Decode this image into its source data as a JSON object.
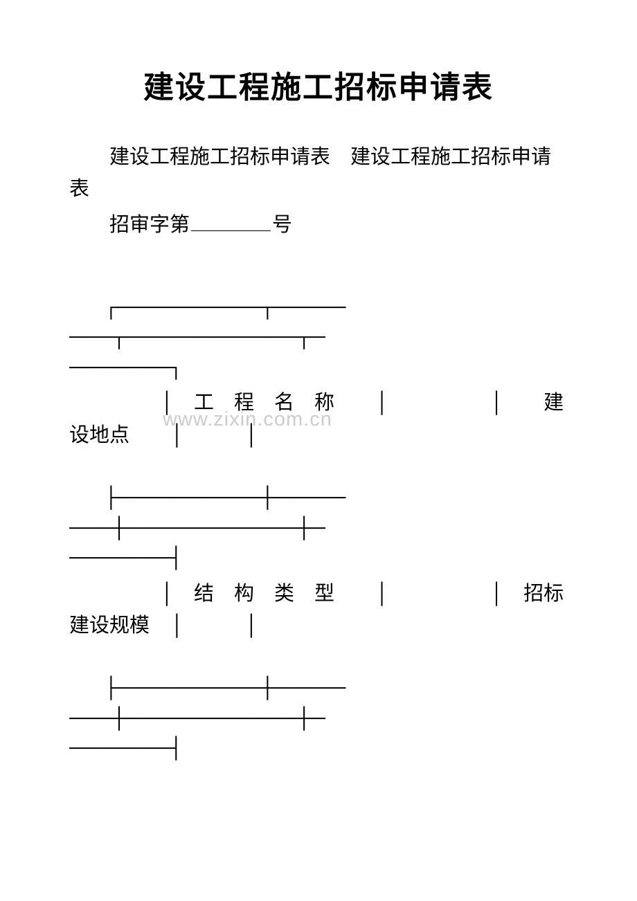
{
  "title": "建设工程施工招标申请表",
  "subtitle": "建设工程施工招标申请表　建设工程施工招标申请表",
  "serial_prefix": "招审字第",
  "serial_suffix": "号",
  "watermark": "www.zixin.com.cn",
  "border_top_1": "┌──────────┬─────",
  "border_top_2": "───┬────────────┬─",
  "border_top_3": "───────┐",
  "row1_text": "　│　工　程　名　称　　│　　　　　│　　建设地点　　│　　　│",
  "row1_label1": "工　程　名　称",
  "row1_label2": "建设地点",
  "border_mid_1": "├──────────┼─────",
  "border_mid_2": "───┼────────────┼─",
  "border_mid_3": "───────┤",
  "row2_label1": "结　构　类　型",
  "row2_label2": "招标建设规模",
  "row2_text": "　│　结　构　类　型　　│　　　　　│　招标建设规模　│　　　│",
  "colors": {
    "text": "#000000",
    "background": "#ffffff",
    "watermark": "#cccccc"
  }
}
